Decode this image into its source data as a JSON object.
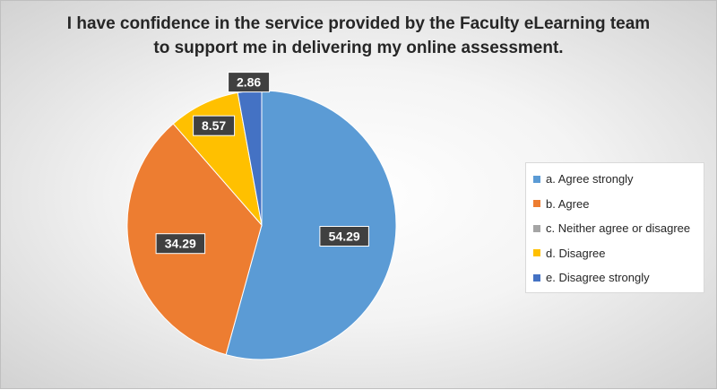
{
  "chart_data": {
    "type": "pie",
    "title_lines": [
      "I have confidence in the service provided by the Faculty eLearning team",
      "to support me in delivering my online assessment."
    ],
    "legend_position": "right",
    "slices": [
      {
        "label": "a. Agree strongly",
        "value": 54.29,
        "data_label": "54.29",
        "color": "#5B9BD5"
      },
      {
        "label": "b. Agree",
        "value": 34.29,
        "data_label": "34.29",
        "color": "#ED7D31"
      },
      {
        "label": "c. Neither agree or disagree",
        "value": 0,
        "data_label": "",
        "color": "#A5A5A5"
      },
      {
        "label": "d. Disagree",
        "value": 8.57,
        "data_label": "8.57",
        "color": "#FFC000"
      },
      {
        "label": "e. Disagree strongly",
        "value": 2.86,
        "data_label": "2.86",
        "color": "#4472C4"
      }
    ]
  }
}
